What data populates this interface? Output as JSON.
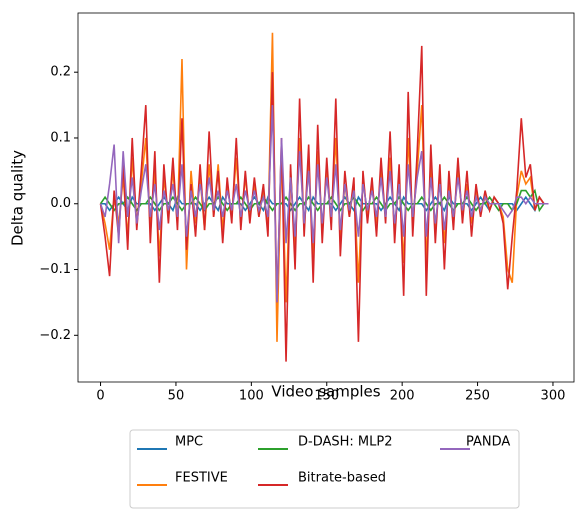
{
  "chart_data": {
    "type": "line",
    "xlabel": "Video samples",
    "ylabel": "Delta quality",
    "x": [
      0,
      3,
      6,
      9,
      12,
      15,
      18,
      21,
      24,
      27,
      30,
      33,
      36,
      39,
      42,
      45,
      48,
      51,
      54,
      57,
      60,
      63,
      66,
      69,
      72,
      75,
      78,
      81,
      84,
      87,
      90,
      93,
      96,
      99,
      102,
      105,
      108,
      111,
      114,
      117,
      120,
      123,
      126,
      129,
      132,
      135,
      138,
      141,
      144,
      147,
      150,
      153,
      156,
      159,
      162,
      165,
      168,
      171,
      174,
      177,
      180,
      183,
      186,
      189,
      192,
      195,
      198,
      201,
      204,
      207,
      210,
      213,
      216,
      219,
      222,
      225,
      228,
      231,
      234,
      237,
      240,
      243,
      246,
      249,
      252,
      255,
      258,
      261,
      264,
      267,
      270,
      273,
      276,
      279,
      282,
      285,
      288,
      291,
      294,
      297
    ],
    "series": [
      {
        "name": "MPC",
        "color": "#1f77b4",
        "values": [
          0,
          0,
          -0.01,
          0,
          0.01,
          0,
          -0.01,
          0.01,
          0,
          0,
          0,
          0,
          -0.01,
          0,
          0.01,
          0,
          -0.01,
          0.01,
          0,
          0,
          0,
          0,
          -0.01,
          0,
          0.01,
          0,
          -0.01,
          0.01,
          0,
          0,
          0,
          0,
          -0.01,
          0,
          0.01,
          0,
          -0.01,
          0.01,
          0,
          0,
          0,
          0,
          -0.01,
          0,
          0.01,
          0,
          -0.01,
          0.01,
          0,
          0,
          0,
          0,
          -0.01,
          0,
          0.01,
          0,
          -0.01,
          0.01,
          0,
          0,
          0,
          0,
          -0.01,
          0,
          0.01,
          0,
          -0.01,
          0.01,
          0,
          0,
          0,
          0,
          -0.01,
          0,
          0.01,
          0,
          -0.01,
          0.01,
          0,
          0,
          0,
          0,
          -0.01,
          0,
          0.01,
          0,
          -0.01,
          0.01,
          0,
          0,
          0,
          0,
          -0.01,
          0,
          0.01,
          0,
          -0.01,
          0.01,
          0,
          0
        ]
      },
      {
        "name": "FESTIVE",
        "color": "#ff7f0e",
        "values": [
          0,
          -0.03,
          -0.07,
          0.01,
          -0.03,
          0.04,
          -0.05,
          0.07,
          -0.03,
          0.03,
          0.1,
          -0.04,
          0.05,
          -0.08,
          0.04,
          -0.02,
          0.05,
          -0.03,
          0.22,
          -0.1,
          0.05,
          -0.03,
          0.04,
          -0.04,
          0.06,
          -0.02,
          0.06,
          -0.04,
          0.03,
          -0.02,
          0.07,
          -0.03,
          0.04,
          -0.02,
          0.03,
          -0.02,
          0.02,
          -0.04,
          0.26,
          -0.21,
          0.08,
          -0.15,
          0.05,
          -0.07,
          0.1,
          -0.04,
          0.06,
          -0.08,
          0.08,
          -0.04,
          0.05,
          -0.03,
          0.1,
          -0.05,
          0.03,
          -0.02,
          0.03,
          -0.12,
          0.04,
          -0.02,
          0.03,
          -0.03,
          0.05,
          -0.02,
          0.07,
          -0.04,
          0.04,
          -0.09,
          0.1,
          -0.03,
          0.05,
          0.15,
          -0.09,
          0.06,
          -0.04,
          0.04,
          -0.06,
          0.03,
          -0.03,
          0.05,
          -0.02,
          0.03,
          -0.03,
          0.02,
          -0.01,
          0.01,
          -0.01,
          0.01,
          0,
          -0.02,
          -0.1,
          -0.12,
          0.01,
          0.05,
          0.03,
          0.04,
          -0.01,
          0.01,
          0,
          0
        ]
      },
      {
        "name": "D-DASH: MLP2",
        "color": "#2ca02c",
        "values": [
          0,
          0.01,
          0,
          -0.01,
          0,
          0,
          0.01,
          0,
          -0.01,
          0,
          0,
          0.01,
          0,
          -0.01,
          0,
          0,
          0.01,
          0,
          -0.01,
          0,
          0,
          0.01,
          0,
          -0.01,
          0,
          0,
          0.01,
          0,
          -0.01,
          0,
          0,
          0.01,
          0,
          -0.01,
          0,
          0,
          0.01,
          0,
          -0.01,
          0,
          0,
          0.01,
          0,
          -0.01,
          0,
          0,
          0.01,
          0,
          -0.01,
          0,
          0,
          0.01,
          0,
          -0.01,
          0,
          0,
          0.01,
          0,
          -0.01,
          0,
          0,
          0.01,
          0,
          -0.01,
          0,
          0,
          0.01,
          0,
          -0.01,
          0,
          0,
          0.01,
          0,
          -0.01,
          0,
          0,
          0.01,
          0,
          -0.01,
          0,
          0,
          0.01,
          0,
          -0.01,
          0,
          0,
          0.01,
          0,
          -0.01,
          0,
          0,
          -0.01,
          0,
          0.02,
          0.02,
          0.01,
          0.02,
          -0.01,
          0,
          0
        ]
      },
      {
        "name": "Bitrate-based",
        "color": "#d62728",
        "values": [
          0,
          -0.05,
          -0.11,
          0.02,
          -0.05,
          0.06,
          -0.07,
          0.1,
          -0.04,
          0.05,
          0.15,
          -0.06,
          0.08,
          -0.12,
          0.06,
          -0.03,
          0.07,
          -0.04,
          0.13,
          -0.07,
          0.03,
          -0.05,
          0.06,
          -0.04,
          0.11,
          -0.02,
          0.05,
          -0.06,
          0.04,
          -0.03,
          0.1,
          -0.04,
          0.05,
          -0.03,
          0.04,
          -0.02,
          0.03,
          -0.05,
          0.2,
          -0.15,
          0.1,
          -0.24,
          0.06,
          -0.1,
          0.16,
          -0.05,
          0.09,
          -0.12,
          0.12,
          -0.06,
          0.07,
          -0.04,
          0.16,
          -0.08,
          0.05,
          -0.02,
          0.04,
          -0.21,
          0.05,
          -0.03,
          0.04,
          -0.05,
          0.07,
          -0.03,
          0.11,
          -0.06,
          0.06,
          -0.14,
          0.17,
          -0.05,
          0.08,
          0.24,
          -0.14,
          0.09,
          -0.06,
          0.06,
          -0.1,
          0.05,
          -0.04,
          0.07,
          -0.03,
          0.05,
          -0.05,
          0.03,
          -0.02,
          0.02,
          -0.01,
          0.01,
          0,
          -0.03,
          -0.13,
          -0.05,
          0.02,
          0.13,
          0.04,
          0.06,
          -0.01,
          0.01,
          0,
          0
        ]
      },
      {
        "name": "PANDA",
        "color": "#9467bd",
        "values": [
          0,
          -0.02,
          0.03,
          0.09,
          -0.06,
          0.08,
          -0.02,
          0.04,
          -0.03,
          0.02,
          0.06,
          -0.02,
          0.03,
          -0.04,
          0.02,
          -0.01,
          0.03,
          -0.02,
          0.06,
          -0.05,
          0.02,
          -0.02,
          0.03,
          -0.01,
          0.04,
          -0.01,
          0.02,
          -0.02,
          0.02,
          -0.01,
          0.03,
          -0.02,
          0.02,
          -0.01,
          0.02,
          -0.01,
          0.01,
          -0.02,
          0.15,
          -0.15,
          0.1,
          -0.06,
          0.04,
          -0.05,
          0.08,
          -0.03,
          0.05,
          -0.06,
          0.06,
          -0.03,
          0.04,
          -0.02,
          0.06,
          -0.04,
          0.03,
          -0.01,
          0.02,
          -0.05,
          0.03,
          -0.01,
          0.02,
          -0.02,
          0.04,
          -0.02,
          0.05,
          -0.03,
          0.03,
          -0.05,
          0.06,
          -0.02,
          0.04,
          0.08,
          -0.05,
          0.04,
          -0.03,
          0.03,
          -0.04,
          0.02,
          -0.02,
          0.04,
          -0.01,
          0.02,
          -0.02,
          0.01,
          -0.01,
          0.01,
          0,
          0,
          0,
          -0.01,
          -0.02,
          -0.01,
          0.01,
          0.01,
          0,
          0.01,
          0,
          0,
          0,
          0
        ]
      }
    ],
    "xlim": [
      -14.95,
      313.95
    ],
    "xticks": [
      0,
      50,
      100,
      150,
      200,
      250,
      300
    ],
    "ylim": [
      -0.271,
      0.29
    ],
    "yticks": [
      {
        "value": -0.2,
        "label": "−0.2"
      },
      {
        "value": -0.1,
        "label": "−0.1"
      },
      {
        "value": 0,
        "label": "0.0"
      },
      0.1,
      0.2
    ],
    "grid": false,
    "legend": "lower center"
  }
}
